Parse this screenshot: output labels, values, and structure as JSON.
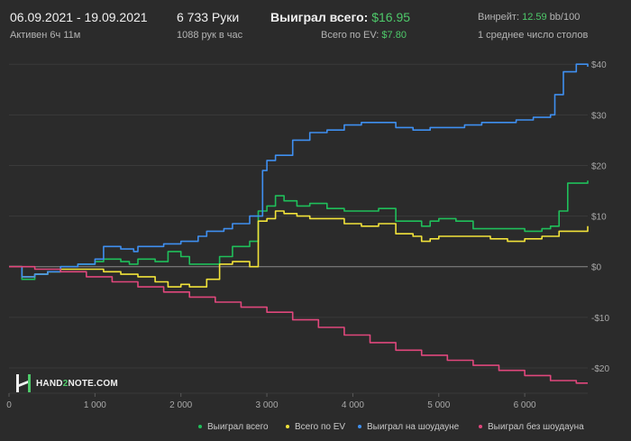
{
  "header": {
    "date_range": "06.09.2021 - 19.09.2021",
    "active": "Активен 6ч 11м",
    "hands": "6 733 Руки",
    "hands_per_hour": "1088 рук в час",
    "won_label": "Выиграл всего:",
    "won_value": "$16.95",
    "ev_label": "Всего по EV:",
    "ev_value": "$7.80",
    "winrate_label": "Винрейт:",
    "winrate_value": "12.59",
    "winrate_suffix": "bb/100",
    "avg_tables": "1 среднее число столов"
  },
  "logo": {
    "part1": "HAND",
    "part2": "2",
    "part3": "NOTE.COM"
  },
  "colors": {
    "background": "#2b2b2b",
    "grid": "#3a3a3a",
    "zero": "#8a8a8a",
    "won": "#1fbf5a",
    "ev": "#f2e33a",
    "showdown": "#3f8ff0",
    "non_showdown": "#e0477c"
  },
  "chart_data": {
    "type": "line",
    "title": "",
    "xlabel": "",
    "ylabel": "",
    "xlim": [
      0,
      6733
    ],
    "ylim": [
      -25,
      42
    ],
    "x_ticks": [
      0,
      1000,
      2000,
      3000,
      4000,
      5000,
      6000
    ],
    "x_tick_labels": [
      "0",
      "1 000",
      "2 000",
      "3 000",
      "4 000",
      "5 000",
      "6 000"
    ],
    "y_ticks": [
      40,
      30,
      20,
      10,
      0,
      -10,
      -20
    ],
    "y_tick_labels": [
      "$40",
      "$30",
      "$20",
      "$10",
      "$0",
      "-$10",
      "-$20"
    ],
    "legend_position": "bottom-right",
    "series": [
      {
        "name": "Выиграл всего",
        "color": "#1fbf5a",
        "x": [
          0,
          150,
          300,
          450,
          600,
          800,
          1000,
          1100,
          1300,
          1400,
          1500,
          1700,
          1850,
          2000,
          2100,
          2300,
          2450,
          2600,
          2800,
          2900,
          3000,
          3100,
          3200,
          3350,
          3500,
          3700,
          3900,
          4100,
          4300,
          4500,
          4700,
          4800,
          4900,
          5000,
          5200,
          5400,
          5600,
          5800,
          6000,
          6200,
          6300,
          6400,
          6500,
          6733
        ],
        "y": [
          0,
          -2.5,
          -1.5,
          -1,
          0,
          0.5,
          1,
          1.5,
          1,
          0.5,
          1.5,
          1,
          3,
          2,
          0.5,
          0.5,
          2,
          4,
          5,
          11,
          12,
          14,
          13,
          12,
          12.5,
          11.5,
          11,
          11,
          11.5,
          9,
          9,
          8,
          9,
          9.5,
          9,
          7.5,
          7.5,
          7.5,
          7,
          7.5,
          8,
          11,
          16.5,
          17
        ]
      },
      {
        "name": "Всего по EV",
        "color": "#f2e33a",
        "x": [
          0,
          150,
          300,
          450,
          600,
          800,
          1000,
          1100,
          1300,
          1500,
          1700,
          1850,
          2000,
          2100,
          2300,
          2450,
          2600,
          2800,
          2900,
          3000,
          3100,
          3200,
          3350,
          3500,
          3700,
          3900,
          4100,
          4300,
          4500,
          4700,
          4800,
          4900,
          5000,
          5200,
          5400,
          5600,
          5800,
          6000,
          6200,
          6300,
          6400,
          6500,
          6733
        ],
        "y": [
          0,
          -2,
          -1.5,
          -1,
          -0.5,
          -0.5,
          -0.5,
          -1,
          -1.5,
          -2,
          -3,
          -4,
          -3.5,
          -4,
          -2.5,
          0.5,
          1,
          0,
          9,
          9.5,
          11,
          10.5,
          10,
          9.5,
          9.5,
          8.5,
          8,
          8.5,
          6.5,
          6,
          5,
          5.5,
          6,
          6,
          6,
          5.5,
          5,
          5.5,
          6,
          6,
          7,
          7,
          8
        ]
      },
      {
        "name": "Выиграл на шоудауне",
        "color": "#3f8ff0",
        "x": [
          0,
          150,
          300,
          450,
          600,
          800,
          1000,
          1100,
          1300,
          1450,
          1500,
          1800,
          2000,
          2200,
          2300,
          2500,
          2600,
          2800,
          2950,
          3000,
          3100,
          3300,
          3500,
          3700,
          3900,
          4100,
          4300,
          4500,
          4700,
          4900,
          5100,
          5300,
          5500,
          5700,
          5900,
          6100,
          6200,
          6300,
          6350,
          6450,
          6600,
          6733
        ],
        "y": [
          0,
          -2,
          -1.5,
          -1,
          0,
          0.5,
          1.5,
          4,
          3.5,
          3,
          4,
          4.5,
          5,
          6,
          7,
          7.5,
          8.5,
          10,
          19,
          21,
          22,
          25,
          26.5,
          27,
          28,
          28.5,
          28.5,
          27.5,
          27,
          27.5,
          27.5,
          28,
          28.5,
          28.5,
          29,
          29.5,
          29.5,
          30,
          34,
          38.5,
          40,
          39.5
        ]
      },
      {
        "name": "Выиграл без шоудауна",
        "color": "#e0477c",
        "x": [
          0,
          300,
          600,
          900,
          1200,
          1500,
          1800,
          2100,
          2400,
          2700,
          3000,
          3300,
          3600,
          3900,
          4200,
          4500,
          4800,
          5100,
          5400,
          5700,
          6000,
          6300,
          6600,
          6733
        ],
        "y": [
          0,
          -0.5,
          -1,
          -2,
          -3,
          -4,
          -5,
          -6,
          -7,
          -8,
          -9,
          -10.5,
          -12,
          -13.5,
          -15,
          -16.5,
          -17.5,
          -18.5,
          -19.5,
          -20.5,
          -21.5,
          -22.5,
          -23,
          -23
        ]
      }
    ]
  }
}
